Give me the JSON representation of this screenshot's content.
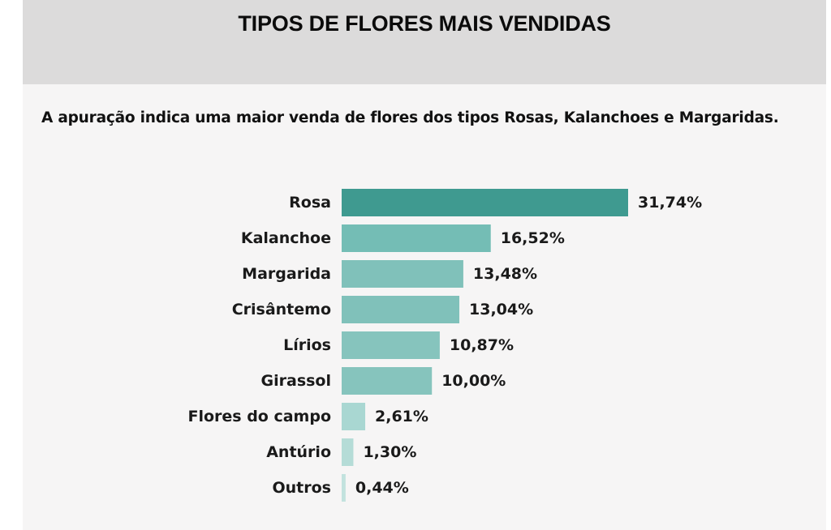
{
  "title": "TIPOS DE FLORES MAIS VENDIDAS",
  "subtitle": "A apuração indica uma maior venda de flores dos tipos Rosas, Kalanchoes e Margaridas.",
  "chart_data": {
    "type": "bar",
    "orientation": "horizontal",
    "categories": [
      "Rosa",
      "Kalanchoe",
      "Margarida",
      "Crisântemo",
      "Lírios",
      "Girassol",
      "Flores do campo",
      "Antúrio",
      "Outros"
    ],
    "values": [
      31.74,
      16.52,
      13.48,
      13.04,
      10.87,
      10.0,
      2.61,
      1.3,
      0.44
    ],
    "value_labels": [
      "31,74%",
      "16,52%",
      "13,48%",
      "13,04%",
      "10,87%",
      "10,00%",
      "2,61%",
      "1,30%",
      "0,44%"
    ],
    "unit": "%",
    "colors": [
      "#3f9a90",
      "#74bdb5",
      "#80c1ba",
      "#80c1ba",
      "#86c4bd",
      "#86c4bd",
      "#a9d7d2",
      "#b5dcd7",
      "#c2e2de"
    ],
    "xlim": [
      0,
      31.74
    ],
    "grid": false,
    "legend": "none"
  }
}
